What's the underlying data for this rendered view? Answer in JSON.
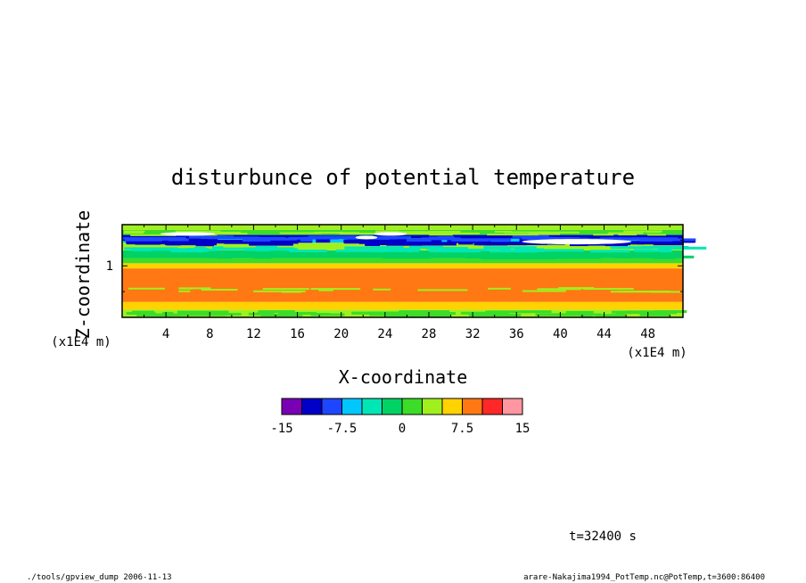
{
  "chart_data": {
    "type": "heatmap",
    "title": "disturbunce of potential temperature",
    "xlabel": "X-coordinate",
    "ylabel": "Z-coordinate",
    "x_unit": "(x1E4 m)",
    "y_unit": "(x1E4 m)",
    "xlim": [
      0,
      51.2
    ],
    "ylim": [
      0,
      1.8
    ],
    "x_ticks": [
      4,
      8,
      12,
      16,
      20,
      24,
      28,
      32,
      36,
      40,
      44,
      48
    ],
    "y_ticks": [
      1
    ],
    "colorbar": {
      "levels": [
        -15,
        -12.5,
        -10,
        -7.5,
        -5,
        -2.5,
        0,
        2.5,
        5,
        7.5,
        10,
        12.5,
        15
      ],
      "colors": [
        "#7a00b4",
        "#0000c8",
        "#1e46ff",
        "#00c8ff",
        "#00e6b4",
        "#00d264",
        "#3cdc28",
        "#a0f01e",
        "#ffd200",
        "#ff7814",
        "#ff2828",
        "#ff96a0"
      ],
      "tick_labels": [
        "-15",
        "-7.5",
        "0",
        "7.5",
        "15"
      ]
    },
    "bands": [
      {
        "z": [
          0.0,
          0.15
        ],
        "value": 3.75
      },
      {
        "z": [
          0.15,
          0.3
        ],
        "value": 6.25
      },
      {
        "z": [
          0.3,
          0.95
        ],
        "value": 8.75
      },
      {
        "z": [
          0.95,
          1.05
        ],
        "value": 6.25
      },
      {
        "z": [
          1.05,
          1.15
        ],
        "value": 1.25
      },
      {
        "z": [
          1.15,
          1.3
        ],
        "value": -1.25
      },
      {
        "z": [
          1.3,
          1.45
        ],
        "value": 3.75
      },
      {
        "z": [
          1.45,
          1.53
        ],
        "value": -6.25
      },
      {
        "z": [
          1.53,
          1.6
        ],
        "value": -11.25
      },
      {
        "z": [
          1.6,
          1.7
        ],
        "value": 1.25
      },
      {
        "z": [
          1.7,
          1.8
        ],
        "value": 3.75
      }
    ],
    "time_label": "t=32400 s"
  },
  "footer": {
    "left": "./tools/gpview_dump  2006-11-13",
    "right": "arare-Nakajima1994_PotTemp.nc@PotTemp,t=3600:86400"
  }
}
